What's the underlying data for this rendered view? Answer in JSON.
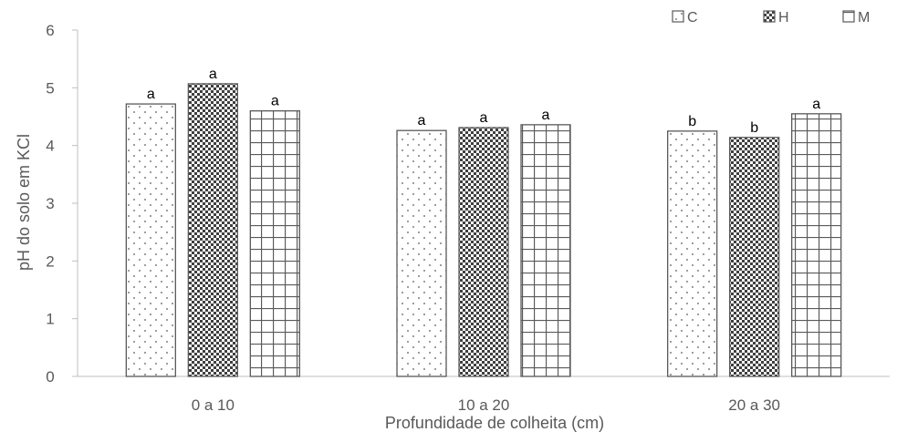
{
  "chart_data": {
    "type": "bar",
    "categories": [
      "0 a 10",
      "10 a 20",
      "20 a 30"
    ],
    "series": [
      {
        "name": "C",
        "pattern": "dots",
        "values": [
          4.72,
          4.26,
          4.25
        ],
        "labels": [
          "a",
          "a",
          "b"
        ]
      },
      {
        "name": "H",
        "pattern": "checker",
        "values": [
          5.07,
          4.31,
          4.14
        ],
        "labels": [
          "a",
          "a",
          "b"
        ]
      },
      {
        "name": "M",
        "pattern": "grid",
        "values": [
          4.6,
          4.36,
          4.55
        ],
        "labels": [
          "a",
          "a",
          "a"
        ]
      }
    ],
    "xlabel": "Profundidade de colheita (cm)",
    "ylabel": "pH do solo em KCl",
    "ylim": [
      0,
      6
    ],
    "yticks": [
      0,
      1,
      2,
      3,
      4,
      5,
      6
    ],
    "grid": false,
    "legend_position": "top-right",
    "colors": {
      "bar_stroke": "#595959",
      "axis": "#bfbfbf",
      "text": "#595959",
      "fill": "#ffffff"
    }
  }
}
